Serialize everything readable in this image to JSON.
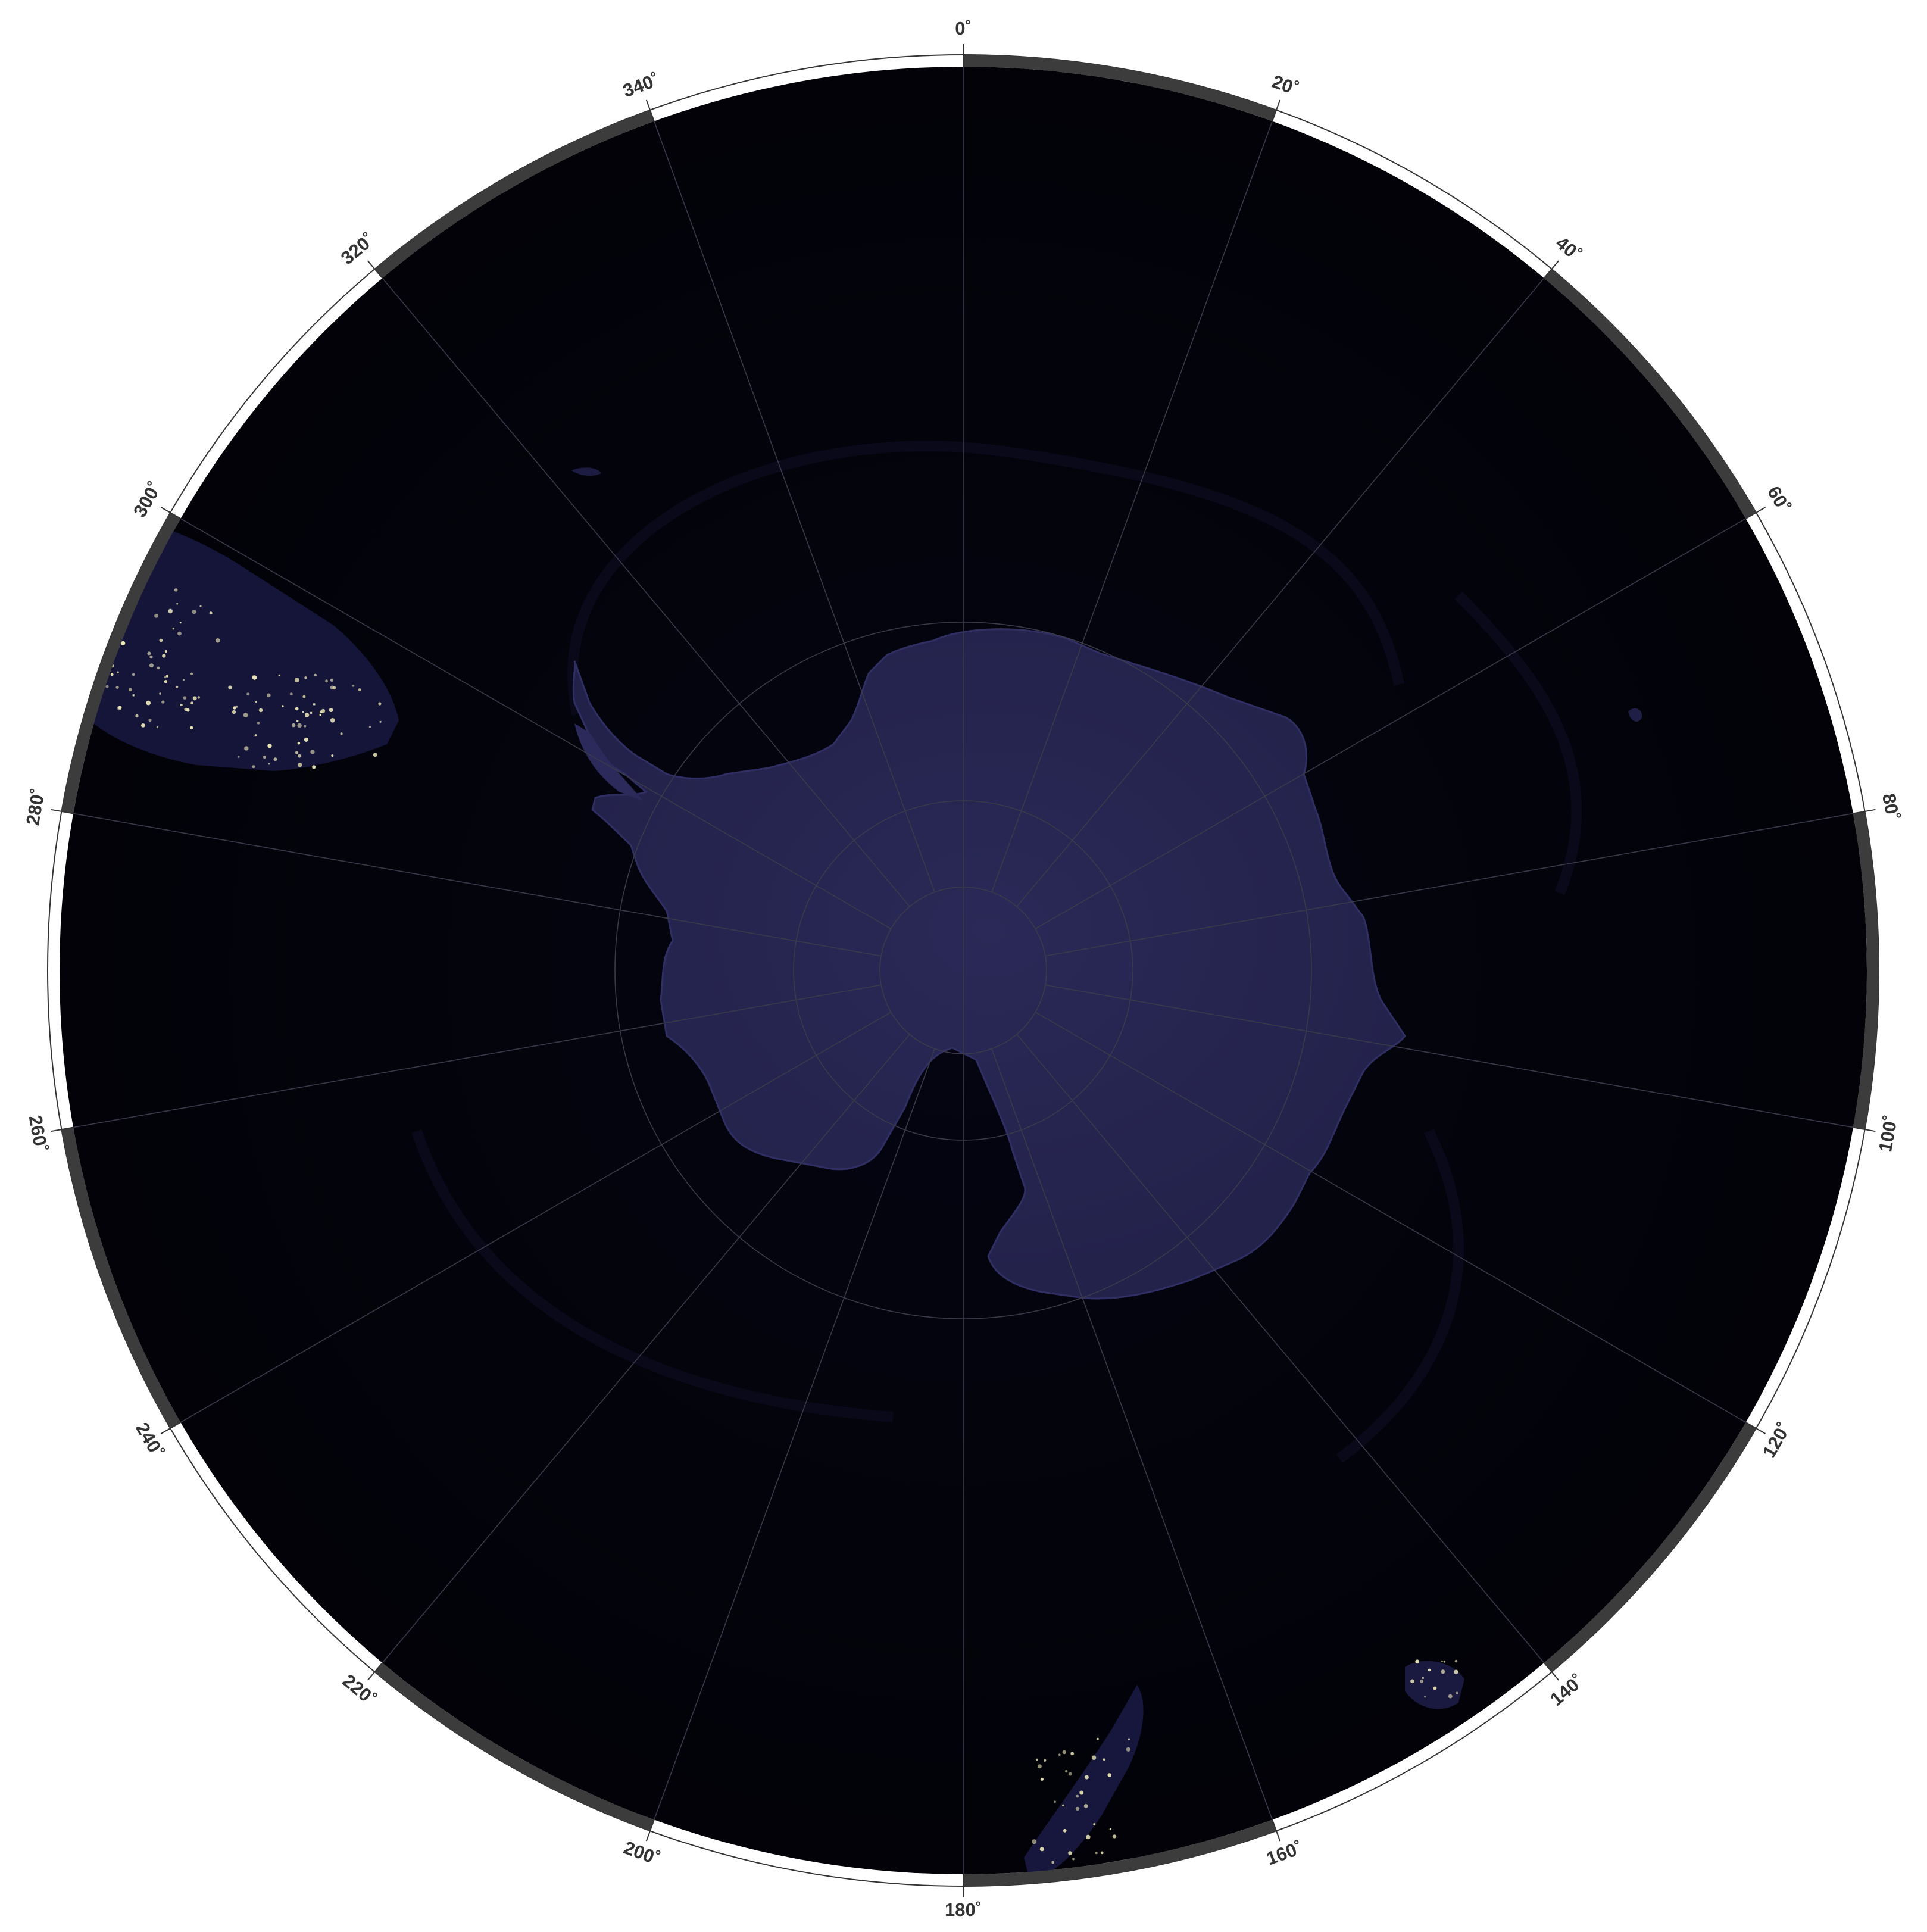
{
  "map": {
    "projection": "polar-stereographic-south",
    "colors": {
      "ocean": "#03030b",
      "ocean_deep": "#010106",
      "land": "#25244f",
      "land_light": "#2c2b5c",
      "city_lights": "#e9e4b6",
      "graticule": "#3a3a4a",
      "frame_dark": "#3c3c3c",
      "frame_light": "#ffffff",
      "frame_outline": "#333333",
      "label": "#333333"
    },
    "longitude_labels": [
      {
        "lon": 0,
        "text": "0˚"
      },
      {
        "lon": 20,
        "text": "20˚"
      },
      {
        "lon": 40,
        "text": "40˚"
      },
      {
        "lon": 60,
        "text": "60˚"
      },
      {
        "lon": 80,
        "text": "80˚"
      },
      {
        "lon": 100,
        "text": "100˚"
      },
      {
        "lon": 120,
        "text": "120˚"
      },
      {
        "lon": 140,
        "text": "140˚"
      },
      {
        "lon": 160,
        "text": "160˚"
      },
      {
        "lon": 180,
        "text": "180˚"
      },
      {
        "lon": 200,
        "text": "200˚"
      },
      {
        "lon": 220,
        "text": "220˚"
      },
      {
        "lon": 240,
        "text": "240˚"
      },
      {
        "lon": 260,
        "text": "260˚"
      },
      {
        "lon": 280,
        "text": "280˚"
      },
      {
        "lon": 300,
        "text": "300˚"
      },
      {
        "lon": 320,
        "text": "320˚"
      },
      {
        "lon": 340,
        "text": "340˚"
      }
    ],
    "regions": [
      "antarctica",
      "south-america-tip",
      "new-zealand",
      "tasmania",
      "kerguelen"
    ]
  }
}
